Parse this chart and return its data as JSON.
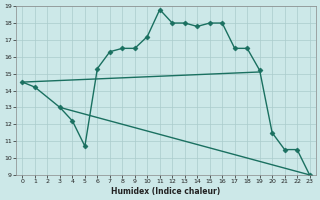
{
  "xlabel": "Humidex (Indice chaleur)",
  "xlim": [
    -0.5,
    23.5
  ],
  "ylim": [
    9,
    19
  ],
  "yticks": [
    9,
    10,
    11,
    12,
    13,
    14,
    15,
    16,
    17,
    18,
    19
  ],
  "xticks": [
    0,
    1,
    2,
    3,
    4,
    5,
    6,
    7,
    8,
    9,
    10,
    11,
    12,
    13,
    14,
    15,
    16,
    17,
    18,
    19,
    20,
    21,
    22,
    23
  ],
  "bg_color": "#cce8e8",
  "grid_color": "#aacccc",
  "line_color": "#1a7060",
  "lines": [
    {
      "x": [
        0,
        1,
        3,
        4,
        5,
        6,
        7,
        8,
        9,
        10,
        11,
        12,
        13,
        14,
        15,
        16,
        17,
        18,
        19,
        20,
        21,
        22,
        23
      ],
      "y": [
        14.5,
        14.2,
        13.0,
        12.2,
        10.7,
        15.3,
        16.3,
        16.5,
        16.5,
        17.2,
        18.8,
        18.0,
        18.0,
        17.8,
        18.0,
        18.0,
        16.5,
        16.5,
        15.2,
        11.5,
        10.5,
        10.5,
        9.0
      ],
      "marker": "D",
      "markersize": 2.5,
      "linewidth": 1.0
    },
    {
      "x": [
        0,
        19
      ],
      "y": [
        14.5,
        15.1
      ],
      "marker": null,
      "markersize": 0,
      "linewidth": 1.0
    },
    {
      "x": [
        3,
        23
      ],
      "y": [
        13.0,
        9.0
      ],
      "marker": null,
      "markersize": 0,
      "linewidth": 1.0
    }
  ]
}
